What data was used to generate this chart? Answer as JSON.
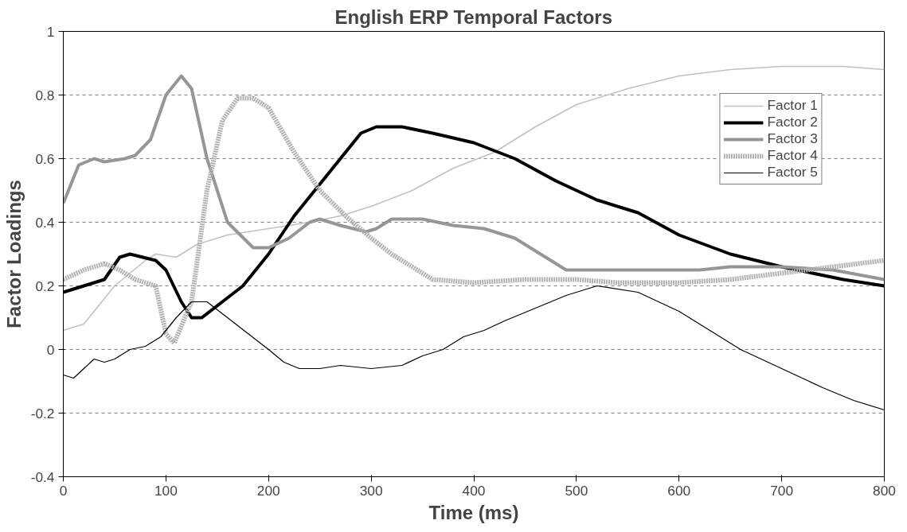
{
  "chart_data": {
    "type": "line",
    "title": "English ERP Temporal Factors",
    "xlabel": "Time (ms)",
    "ylabel": "Factor Loadings",
    "xlim": [
      0,
      800
    ],
    "ylim": [
      -0.4,
      1
    ],
    "xticks": [
      0,
      100,
      200,
      300,
      400,
      500,
      600,
      700,
      800
    ],
    "yticks": [
      -0.4,
      -0.2,
      0,
      0.2,
      0.4,
      0.6,
      0.8,
      1
    ],
    "grid": "y",
    "legend": "right",
    "marker": "none",
    "series": [
      {
        "name": "Factor 1",
        "color": "#c0c0c0",
        "line_style": "solid",
        "x": [
          0,
          20,
          50,
          80,
          90,
          110,
          130,
          160,
          200,
          240,
          270,
          300,
          340,
          380,
          420,
          460,
          500,
          550,
          600,
          650,
          700,
          760,
          800
        ],
        "values": [
          0.06,
          0.08,
          0.2,
          0.28,
          0.3,
          0.29,
          0.33,
          0.36,
          0.38,
          0.4,
          0.42,
          0.45,
          0.5,
          0.57,
          0.62,
          0.7,
          0.77,
          0.82,
          0.86,
          0.88,
          0.89,
          0.89,
          0.88
        ]
      },
      {
        "name": "Factor 2",
        "color": "#000000",
        "line_style": "solid",
        "x": [
          0,
          20,
          40,
          55,
          65,
          90,
          100,
          115,
          125,
          135,
          155,
          175,
          200,
          225,
          250,
          270,
          290,
          305,
          330,
          360,
          400,
          440,
          480,
          520,
          560,
          600,
          650,
          700,
          760,
          800
        ],
        "values": [
          0.18,
          0.2,
          0.22,
          0.29,
          0.3,
          0.28,
          0.25,
          0.15,
          0.1,
          0.1,
          0.15,
          0.2,
          0.3,
          0.42,
          0.52,
          0.6,
          0.68,
          0.7,
          0.7,
          0.68,
          0.65,
          0.6,
          0.53,
          0.47,
          0.43,
          0.36,
          0.3,
          0.26,
          0.22,
          0.2
        ]
      },
      {
        "name": "Factor 3",
        "color": "#969696",
        "line_style": "solid",
        "x": [
          0,
          15,
          30,
          40,
          60,
          70,
          85,
          100,
          115,
          125,
          140,
          160,
          185,
          200,
          220,
          240,
          250,
          270,
          295,
          305,
          320,
          350,
          380,
          410,
          440,
          465,
          490,
          520,
          600,
          620,
          650,
          700,
          750,
          800
        ],
        "values": [
          0.46,
          0.58,
          0.6,
          0.59,
          0.6,
          0.61,
          0.66,
          0.8,
          0.86,
          0.82,
          0.6,
          0.4,
          0.32,
          0.32,
          0.35,
          0.4,
          0.41,
          0.39,
          0.37,
          0.38,
          0.41,
          0.41,
          0.39,
          0.38,
          0.35,
          0.3,
          0.25,
          0.25,
          0.25,
          0.25,
          0.26,
          0.26,
          0.25,
          0.22
        ]
      },
      {
        "name": "Factor 4",
        "color": "#b2b2b2",
        "line_style": "dotted",
        "x": [
          0,
          20,
          40,
          55,
          70,
          90,
          100,
          108,
          125,
          140,
          155,
          170,
          185,
          200,
          225,
          250,
          275,
          300,
          320,
          340,
          360,
          400,
          450,
          500,
          540,
          600,
          650,
          700,
          750,
          800
        ],
        "values": [
          0.22,
          0.25,
          0.27,
          0.25,
          0.22,
          0.2,
          0.05,
          0.02,
          0.15,
          0.5,
          0.72,
          0.79,
          0.79,
          0.76,
          0.62,
          0.5,
          0.42,
          0.35,
          0.3,
          0.26,
          0.22,
          0.21,
          0.22,
          0.22,
          0.21,
          0.21,
          0.22,
          0.24,
          0.26,
          0.28
        ]
      },
      {
        "name": "Factor 5",
        "color": "#000000",
        "line_style": "solid",
        "x": [
          0,
          10,
          20,
          30,
          40,
          50,
          65,
          80,
          95,
          110,
          125,
          140,
          160,
          180,
          200,
          215,
          230,
          250,
          270,
          300,
          330,
          350,
          370,
          390,
          410,
          430,
          460,
          490,
          520,
          560,
          600,
          630,
          660,
          700,
          740,
          770,
          800
        ],
        "values": [
          -0.08,
          -0.09,
          -0.06,
          -0.03,
          -0.04,
          -0.03,
          0,
          0.01,
          0.04,
          0.1,
          0.15,
          0.15,
          0.1,
          0.05,
          0,
          -0.04,
          -0.06,
          -0.06,
          -0.05,
          -0.06,
          -0.05,
          -0.02,
          0,
          0.04,
          0.06,
          0.09,
          0.13,
          0.17,
          0.2,
          0.18,
          0.12,
          0.06,
          0,
          -0.06,
          -0.12,
          -0.16,
          -0.19
        ]
      }
    ]
  }
}
